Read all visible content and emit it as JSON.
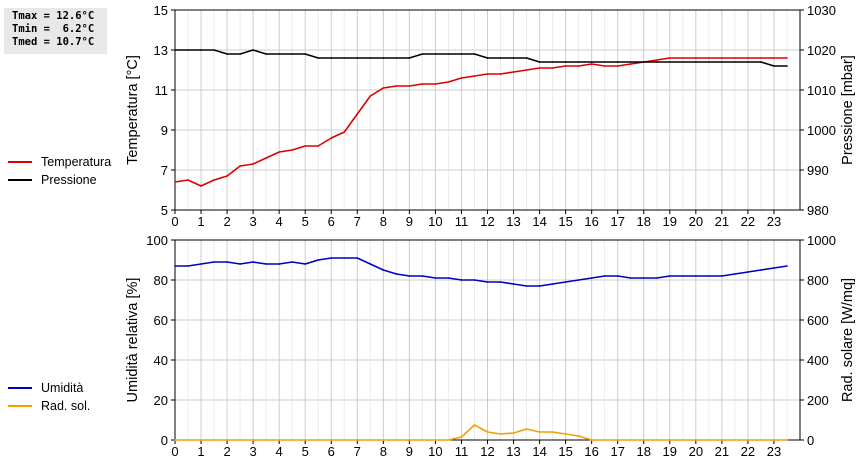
{
  "stats": {
    "tmax": "Tmax = 12.6°C",
    "tmin": "Tmin =  6.2°C",
    "tmed": "Tmed = 10.7°C"
  },
  "chart_data": [
    {
      "type": "line",
      "title": "",
      "ylabel": "Temperatura [°C]",
      "y2label": "Pressione [mbar]",
      "ylim": [
        5,
        15
      ],
      "y2lim": [
        980,
        1030
      ],
      "yticks": [
        "5",
        "7",
        "9",
        "11",
        "13",
        "15"
      ],
      "y2ticks": [
        "980",
        "990",
        "1000",
        "1010",
        "1020",
        "1030"
      ],
      "xlim": [
        0,
        24
      ],
      "xticks": [
        "0",
        "1",
        "2",
        "3",
        "4",
        "5",
        "6",
        "7",
        "8",
        "9",
        "10",
        "11",
        "12",
        "13",
        "14",
        "15",
        "16",
        "17",
        "18",
        "19",
        "20",
        "21",
        "22",
        "23"
      ],
      "grid": true,
      "legend_position": "left",
      "series": [
        {
          "name": "Temperatura",
          "axis": "left",
          "color": "#dd0000",
          "x": [
            0,
            0.5,
            1,
            1.5,
            2,
            2.5,
            3,
            3.5,
            4,
            4.5,
            5,
            5.5,
            6,
            6.5,
            7,
            7.5,
            8,
            8.5,
            9,
            9.5,
            10,
            10.5,
            11,
            11.5,
            12,
            12.5,
            13,
            13.5,
            14,
            14.5,
            15,
            15.5,
            16,
            16.5,
            17,
            17.5,
            18,
            18.5,
            19,
            19.5,
            20,
            20.5,
            21,
            21.5,
            22,
            22.5,
            23,
            23.5
          ],
          "y": [
            6.4,
            6.5,
            6.2,
            6.5,
            6.7,
            7.2,
            7.3,
            7.6,
            7.9,
            8.0,
            8.2,
            8.2,
            8.6,
            8.9,
            9.8,
            10.7,
            11.1,
            11.2,
            11.2,
            11.3,
            11.3,
            11.4,
            11.6,
            11.7,
            11.8,
            11.8,
            11.9,
            12.0,
            12.1,
            12.1,
            12.2,
            12.2,
            12.3,
            12.2,
            12.2,
            12.3,
            12.4,
            12.5,
            12.6,
            12.6,
            12.6,
            12.6,
            12.6,
            12.6,
            12.6,
            12.6,
            12.6,
            12.6
          ]
        },
        {
          "name": "Pressione",
          "axis": "right",
          "color": "#000000",
          "x": [
            0,
            0.5,
            1,
            1.5,
            2,
            2.5,
            3,
            3.5,
            4,
            4.5,
            5,
            5.5,
            6,
            6.5,
            7,
            7.5,
            8,
            8.5,
            9,
            9.5,
            10,
            10.5,
            11,
            11.5,
            12,
            12.5,
            13,
            13.5,
            14,
            14.5,
            15,
            15.5,
            16,
            16.5,
            17,
            17.5,
            18,
            18.5,
            19,
            19.5,
            20,
            20.5,
            21,
            21.5,
            22,
            22.5,
            23,
            23.5
          ],
          "y": [
            1020,
            1020,
            1020,
            1020,
            1019,
            1019,
            1020,
            1019,
            1019,
            1019,
            1019,
            1018,
            1018,
            1018,
            1018,
            1018,
            1018,
            1018,
            1018,
            1019,
            1019,
            1019,
            1019,
            1019,
            1018,
            1018,
            1018,
            1018,
            1017,
            1017,
            1017,
            1017,
            1017,
            1017,
            1017,
            1017,
            1017,
            1017,
            1017,
            1017,
            1017,
            1017,
            1017,
            1017,
            1017,
            1017,
            1016,
            1016
          ]
        }
      ]
    },
    {
      "type": "line",
      "title": "",
      "ylabel": "Umidità relativa [%]",
      "y2label": "Rad. solare [W/mq]",
      "ylim": [
        0,
        100
      ],
      "y2lim": [
        0,
        1000
      ],
      "yticks": [
        "0",
        "20",
        "40",
        "60",
        "80",
        "100"
      ],
      "y2ticks": [
        "0",
        "200",
        "400",
        "600",
        "800",
        "1000"
      ],
      "xlim": [
        0,
        24
      ],
      "xticks": [
        "0",
        "1",
        "2",
        "3",
        "4",
        "5",
        "6",
        "7",
        "8",
        "9",
        "10",
        "11",
        "12",
        "13",
        "14",
        "15",
        "16",
        "17",
        "18",
        "19",
        "20",
        "21",
        "22",
        "23"
      ],
      "grid": true,
      "legend_position": "left",
      "series": [
        {
          "name": "Umidità",
          "axis": "left",
          "color": "#0000c0",
          "x": [
            0,
            0.5,
            1,
            1.5,
            2,
            2.5,
            3,
            3.5,
            4,
            4.5,
            5,
            5.5,
            6,
            6.5,
            7,
            7.5,
            8,
            8.5,
            9,
            9.5,
            10,
            10.5,
            11,
            11.5,
            12,
            12.5,
            13,
            13.5,
            14,
            14.5,
            15,
            15.5,
            16,
            16.5,
            17,
            17.5,
            18,
            18.5,
            19,
            19.5,
            20,
            20.5,
            21,
            21.5,
            22,
            22.5,
            23,
            23.5
          ],
          "y": [
            87,
            87,
            88,
            89,
            89,
            88,
            89,
            88,
            88,
            89,
            88,
            90,
            91,
            91,
            91,
            88,
            85,
            83,
            82,
            82,
            81,
            81,
            80,
            80,
            79,
            79,
            78,
            77,
            77,
            78,
            79,
            80,
            81,
            82,
            82,
            81,
            81,
            81,
            82,
            82,
            82,
            82,
            82,
            83,
            84,
            85,
            86,
            87
          ]
        },
        {
          "name": "Rad. sol.",
          "axis": "right",
          "color": "#f0a000",
          "x": [
            0,
            0.5,
            1,
            1.5,
            2,
            2.5,
            3,
            3.5,
            4,
            4.5,
            5,
            5.5,
            6,
            6.5,
            7,
            7.5,
            8,
            8.5,
            9,
            9.5,
            10,
            10.5,
            11,
            11.5,
            12,
            12.5,
            13,
            13.5,
            14,
            14.5,
            15,
            15.5,
            16,
            16.5,
            17,
            17.5,
            18,
            18.5,
            19,
            19.5,
            20,
            20.5,
            21,
            21.5,
            22,
            22.5,
            23,
            23.5
          ],
          "y": [
            0,
            0,
            0,
            0,
            0,
            0,
            0,
            0,
            0,
            0,
            0,
            0,
            0,
            0,
            0,
            0,
            0,
            0,
            0,
            0,
            0,
            0,
            15,
            75,
            40,
            30,
            35,
            55,
            40,
            40,
            30,
            20,
            0,
            0,
            0,
            0,
            0,
            0,
            0,
            0,
            0,
            0,
            0,
            0,
            0,
            0,
            0,
            0
          ]
        }
      ]
    }
  ]
}
